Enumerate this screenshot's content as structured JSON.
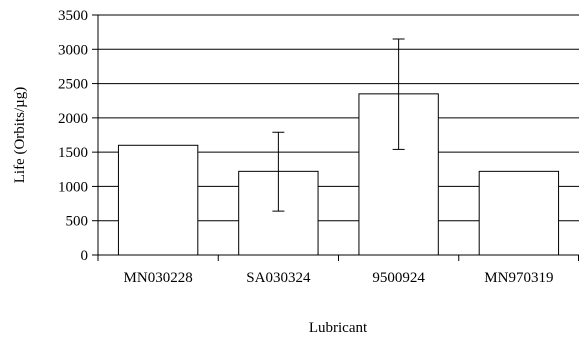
{
  "chart_data": {
    "type": "bar",
    "title": "",
    "xlabel": "Lubricant",
    "ylabel": "Life (Orbits/µg)",
    "ylim": [
      0,
      3500
    ],
    "yticks": [
      0,
      500,
      1000,
      1500,
      2000,
      2500,
      3000,
      3500
    ],
    "grid": true,
    "legend": "none",
    "categories": [
      "MN030228",
      "SA030324",
      "9500924",
      "MN970319"
    ],
    "values": [
      1600,
      1220,
      2350,
      1220
    ],
    "error_bars": [
      null,
      {
        "low": 640,
        "high": 1790
      },
      {
        "low": 1540,
        "high": 3150
      },
      null
    ],
    "colors": {
      "bar_fill": "#ffffff",
      "bar_stroke": "#000000",
      "grid": "#000000"
    }
  }
}
